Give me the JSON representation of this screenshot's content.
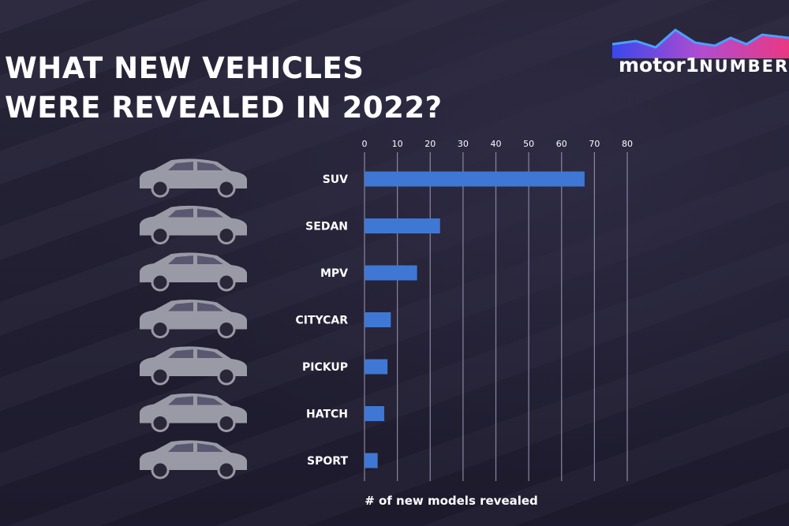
{
  "title_lines": [
    "WHAT NEW VEHICLES",
    "WERE REVEALED IN 2022?"
  ],
  "logo": {
    "brand": "motor1",
    "suffix": "NUMBERS"
  },
  "chart_data": {
    "type": "bar",
    "orientation": "horizontal",
    "title": "WHAT NEW VEHICLES WERE REVEALED IN 2022?",
    "categories": [
      "SUV",
      "SEDAN",
      "MPV",
      "CITYCAR",
      "PICKUP",
      "HATCH",
      "SPORT"
    ],
    "values": [
      67,
      23,
      16,
      8,
      7,
      6,
      4
    ],
    "xlabel": "# of new models revealed",
    "ylabel": "",
    "xlim": [
      0,
      80
    ],
    "ticks": [
      0,
      10,
      20,
      30,
      40,
      50,
      60,
      70,
      80
    ],
    "grid": true,
    "bar_color": "#3f78d4",
    "tick_position": "top"
  }
}
